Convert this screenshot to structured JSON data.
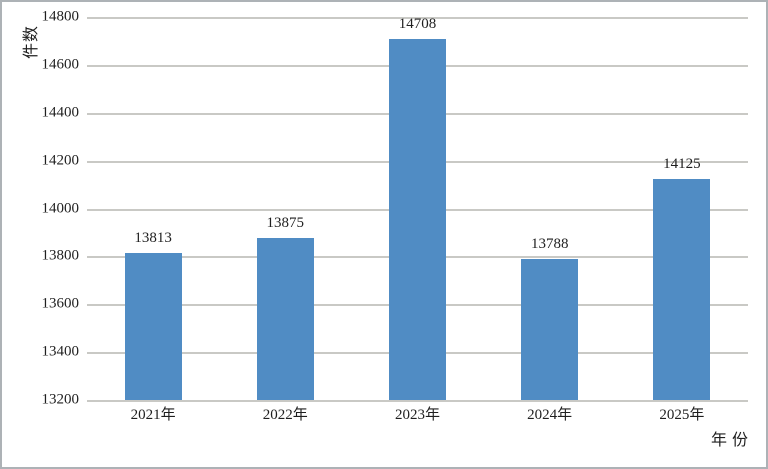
{
  "figure": {
    "background": "#ffffff",
    "border_color": "#adb2b6"
  },
  "chart_data": {
    "type": "bar",
    "title": "",
    "categories": [
      "2021年",
      "2022年",
      "2023年",
      "2024年",
      "2025年"
    ],
    "values": [
      13813,
      13875,
      14708,
      13788,
      14125
    ],
    "value_labels": [
      "13813",
      "13875",
      "14708",
      "13788",
      "14125"
    ],
    "xlabel": "年份",
    "ylabel": "件数",
    "ylim": [
      13200,
      14800
    ],
    "yticks": [
      13200,
      13400,
      13600,
      13800,
      14000,
      14200,
      14400,
      14600,
      14800
    ],
    "grid": true,
    "legend": "none",
    "bar_color": "#508cc4",
    "gridline_color": "#c9c9c5",
    "text_color": "#1f1f1f"
  }
}
